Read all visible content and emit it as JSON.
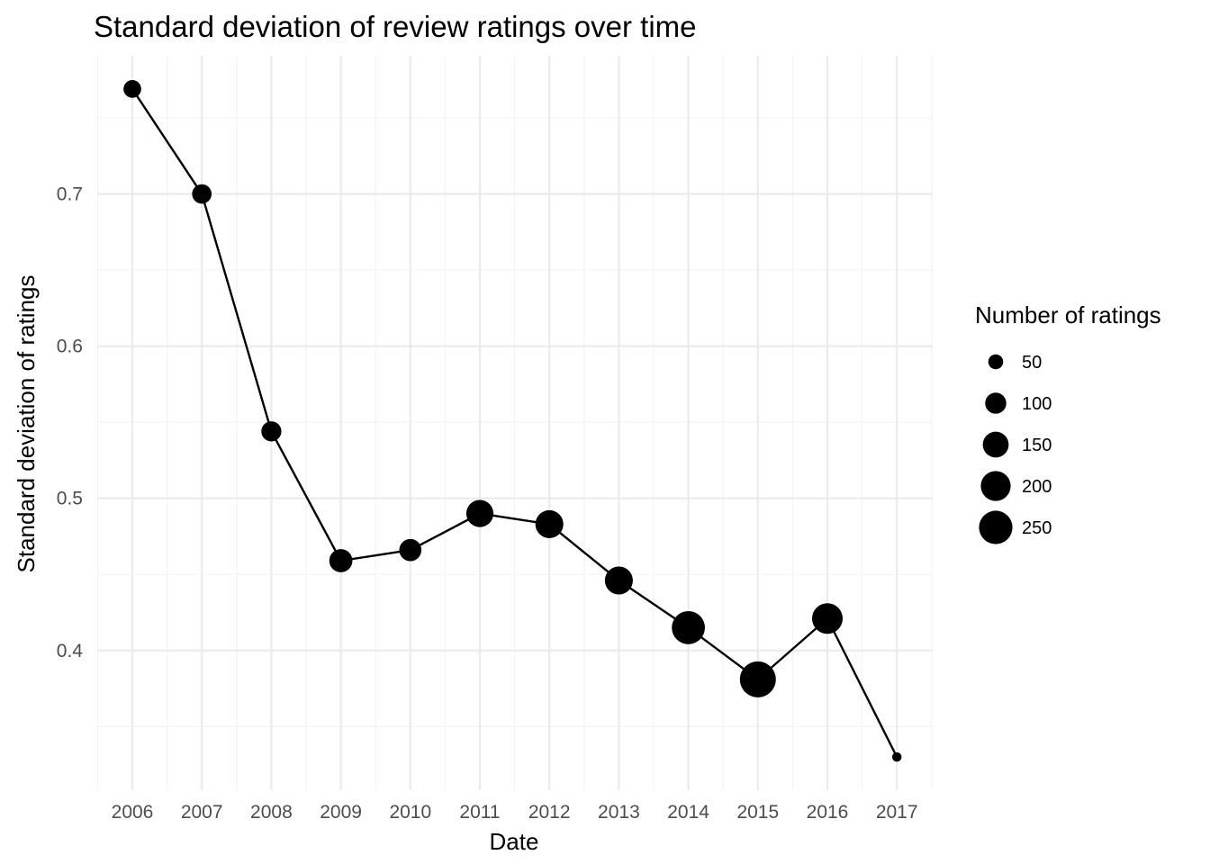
{
  "chart_data": {
    "type": "line",
    "title": "Standard deviation of review ratings over time",
    "xlabel": "Date",
    "ylabel": "Standard deviation of ratings",
    "x": [
      "2006",
      "2007",
      "2008",
      "2009",
      "2010",
      "2011",
      "2012",
      "2013",
      "2014",
      "2015",
      "2016",
      "2017"
    ],
    "series": [
      {
        "values": [
          0.769,
          0.7,
          0.544,
          0.459,
          0.466,
          0.49,
          0.483,
          0.446,
          0.415,
          0.381,
          0.421,
          0.33
        ],
        "counts": [
          70,
          85,
          90,
          120,
          110,
          165,
          175,
          175,
          245,
          290,
          210,
          20
        ]
      }
    ],
    "y_ticks": [
      0.4,
      0.5,
      0.6,
      0.7
    ],
    "y_tick_labels": [
      "0.4",
      "0.5",
      "0.6",
      "0.7"
    ],
    "ylim": [
      0.3082,
      0.7908
    ],
    "grid": true,
    "legend": {
      "title": "Number of ratings",
      "position": "right",
      "entries": [
        {
          "label": "50",
          "value": 50
        },
        {
          "label": "100",
          "value": 100
        },
        {
          "label": "150",
          "value": 150
        },
        {
          "label": "200",
          "value": 200
        },
        {
          "label": "250",
          "value": 250
        }
      ]
    },
    "colors": {
      "line": "#000000",
      "point": "#000000",
      "grid": "#ebebeb"
    }
  }
}
